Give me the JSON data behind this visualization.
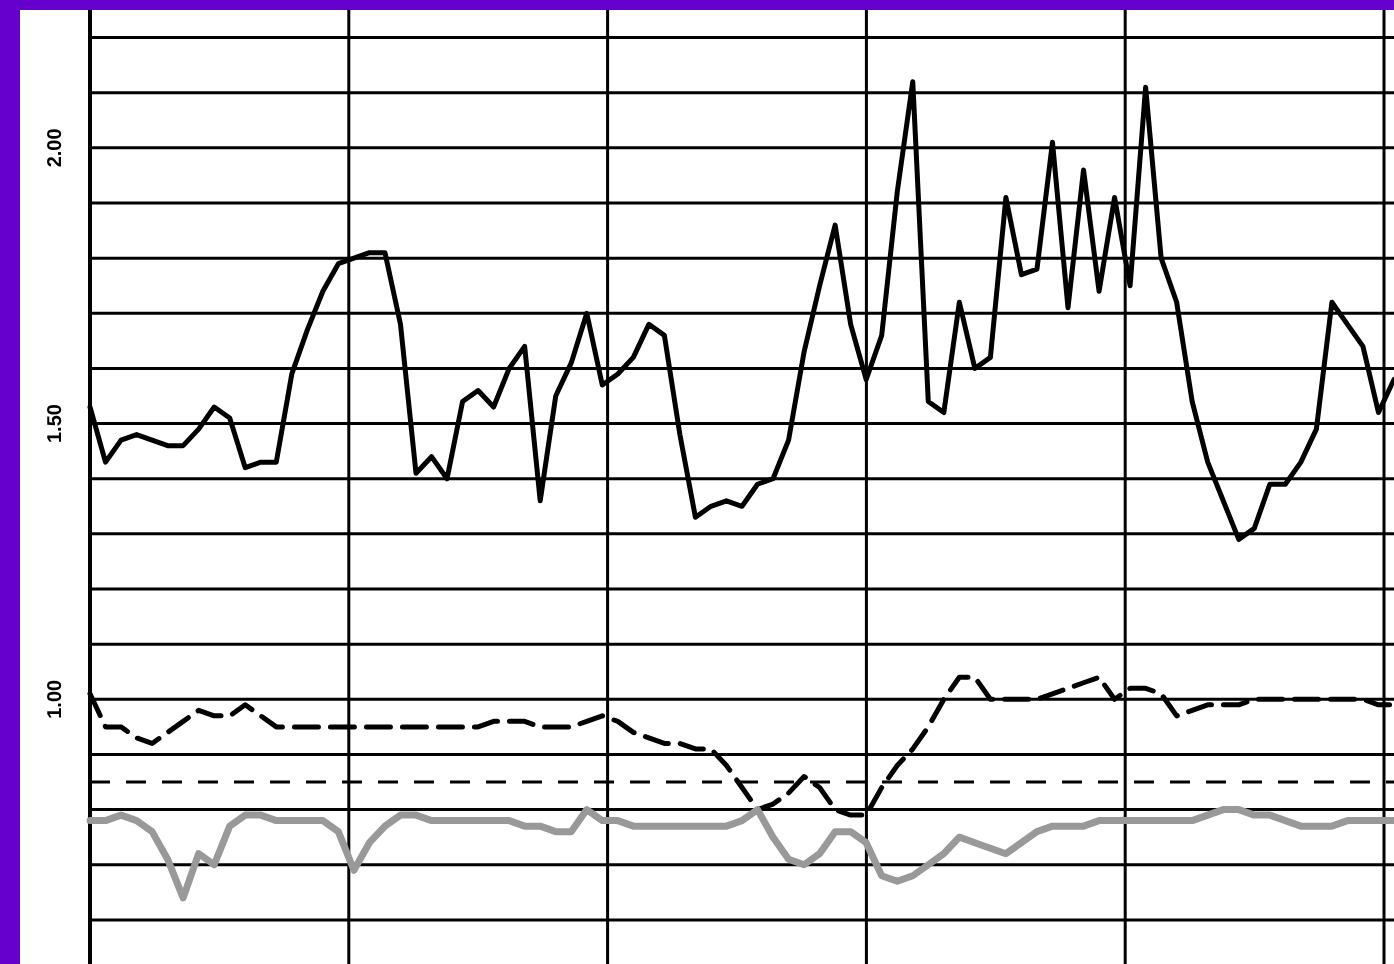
{
  "chart_data": {
    "type": "line",
    "categories": [
      null,
      null,
      null,
      null,
      null,
      null,
      null,
      null,
      null,
      null,
      null,
      null,
      null,
      null,
      null,
      null,
      null,
      null,
      null,
      null,
      null,
      null,
      null,
      null,
      null,
      null,
      null,
      null,
      null,
      null,
      null,
      null,
      null,
      null,
      null,
      null,
      null,
      null,
      null,
      null,
      null,
      null,
      null,
      null,
      null,
      null,
      null,
      null,
      null,
      null,
      null,
      null,
      null,
      null,
      null,
      null,
      null,
      null,
      null,
      null,
      null,
      null,
      null,
      null,
      null,
      null,
      null,
      null,
      null,
      null,
      null,
      null,
      null,
      null,
      null,
      null,
      null,
      null,
      null,
      null,
      null,
      null,
      null,
      null,
      null
    ],
    "ylim": [
      0.52,
      2.25
    ],
    "yticks": [
      {
        "value": 0.6,
        "label": null
      },
      {
        "value": 0.7,
        "label": null
      },
      {
        "value": 0.8,
        "label": null
      },
      {
        "value": 0.9,
        "label": null
      },
      {
        "value": 1.0,
        "label": "1.00"
      },
      {
        "value": 1.1,
        "label": null
      },
      {
        "value": 1.2,
        "label": null
      },
      {
        "value": 1.3,
        "label": null
      },
      {
        "value": 1.4,
        "label": null
      },
      {
        "value": 1.5,
        "label": "1.50"
      },
      {
        "value": 1.6,
        "label": null
      },
      {
        "value": 1.7,
        "label": null
      },
      {
        "value": 1.8,
        "label": null
      },
      {
        "value": 1.9,
        "label": null
      },
      {
        "value": 2.0,
        "label": "2.00"
      },
      {
        "value": 2.1,
        "label": null
      },
      {
        "value": 2.2,
        "label": null
      }
    ],
    "grid": true,
    "tick_labels": "y",
    "marker": "none",
    "ref_lines": [
      {
        "axis": "y",
        "value": 0.85,
        "color": "#000000",
        "line_style": "dashed"
      }
    ],
    "series": [
      {
        "color": "#000000",
        "line_style": "solid",
        "values": [
          1.53,
          1.43,
          1.47,
          1.48,
          1.47,
          1.46,
          1.46,
          1.49,
          1.53,
          1.51,
          1.42,
          1.43,
          1.43,
          1.59,
          1.67,
          1.74,
          1.79,
          1.8,
          1.81,
          1.81,
          1.68,
          1.41,
          1.44,
          1.4,
          1.54,
          1.56,
          1.53,
          1.6,
          1.64,
          1.36,
          1.55,
          1.61,
          1.7,
          1.57,
          1.59,
          1.62,
          1.68,
          1.66,
          1.48,
          1.33,
          1.35,
          1.36,
          1.35,
          1.39,
          1.4,
          1.47,
          1.63,
          1.75,
          1.86,
          1.68,
          1.58,
          1.66,
          1.92,
          2.12,
          1.54,
          1.52,
          1.72,
          1.6,
          1.62,
          1.91,
          1.77,
          1.78,
          2.01,
          1.71,
          1.96,
          1.74,
          1.91,
          1.75,
          2.11,
          1.8,
          1.72,
          1.54,
          1.43,
          1.36,
          1.29,
          1.31,
          1.39,
          1.39,
          1.43,
          1.49,
          1.72,
          1.68,
          1.64,
          1.52,
          1.58
        ]
      },
      {
        "color": "#000000",
        "line_style": "dashed",
        "values": [
          1.01,
          0.95,
          0.95,
          0.93,
          0.92,
          0.94,
          0.96,
          0.98,
          0.97,
          0.97,
          0.99,
          0.97,
          0.95,
          0.95,
          0.95,
          0.95,
          0.95,
          0.95,
          0.95,
          0.95,
          0.95,
          0.95,
          0.95,
          0.95,
          0.95,
          0.95,
          0.96,
          0.96,
          0.96,
          0.95,
          0.95,
          0.95,
          0.96,
          0.97,
          0.96,
          0.94,
          0.93,
          0.92,
          0.92,
          0.91,
          0.91,
          0.88,
          0.84,
          0.8,
          0.81,
          0.83,
          0.86,
          0.84,
          0.8,
          0.79,
          0.79,
          0.84,
          0.88,
          0.91,
          0.95,
          1.0,
          1.04,
          1.04,
          1.0,
          1.0,
          1.0,
          1.0,
          1.01,
          1.02,
          1.03,
          1.04,
          1.0,
          1.02,
          1.02,
          1.01,
          0.97,
          0.98,
          0.99,
          0.99,
          0.99,
          1.0,
          1.0,
          1.0,
          1.0,
          1.0,
          1.0,
          1.0,
          1.0,
          0.99,
          0.99
        ]
      },
      {
        "color": "#999999",
        "line_style": "solid",
        "values": [
          0.78,
          0.78,
          0.79,
          0.78,
          0.76,
          0.71,
          0.64,
          0.72,
          0.7,
          0.77,
          0.79,
          0.79,
          0.78,
          0.78,
          0.78,
          0.78,
          0.76,
          0.69,
          0.74,
          0.77,
          0.79,
          0.79,
          0.78,
          0.78,
          0.78,
          0.78,
          0.78,
          0.78,
          0.77,
          0.77,
          0.76,
          0.76,
          0.8,
          0.78,
          0.78,
          0.77,
          0.77,
          0.77,
          0.77,
          0.77,
          0.77,
          0.77,
          0.78,
          0.8,
          0.75,
          0.71,
          0.7,
          0.72,
          0.76,
          0.76,
          0.74,
          0.68,
          0.67,
          0.68,
          0.7,
          0.72,
          0.75,
          0.74,
          0.73,
          0.72,
          0.74,
          0.76,
          0.77,
          0.77,
          0.77,
          0.78,
          0.78,
          0.78,
          0.78,
          0.78,
          0.78,
          0.78,
          0.79,
          0.8,
          0.8,
          0.79,
          0.79,
          0.78,
          0.77,
          0.77,
          0.77,
          0.78,
          0.78,
          0.78,
          0.78
        ]
      }
    ]
  }
}
